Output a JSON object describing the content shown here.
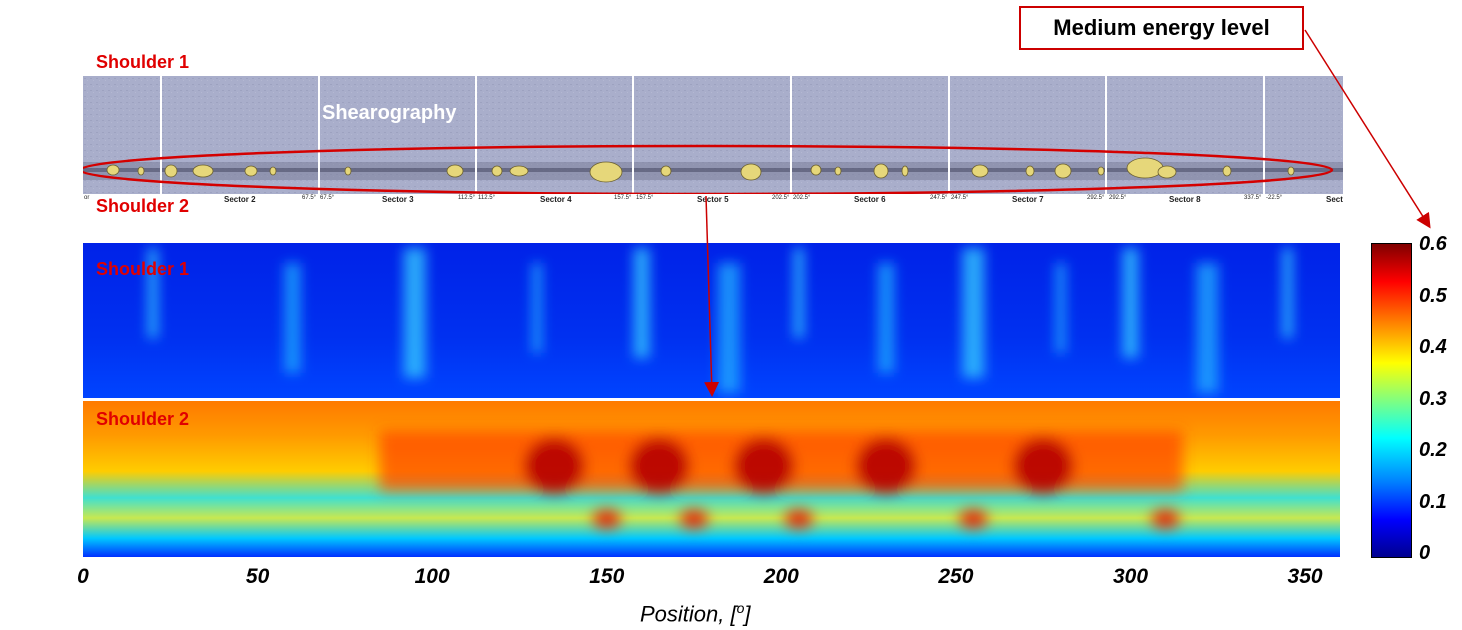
{
  "callout": {
    "text": "Medium energy level"
  },
  "shearography": {
    "title": "Shearography",
    "shoulder_top_label": "Shoulder 1",
    "shoulder_bottom_label": "Shoulder 2",
    "sectors": [
      "Sector 2",
      "Sector 3",
      "Sector 4",
      "Sector 5",
      "Sector 6",
      "Sector 7",
      "Sector 8",
      "Sect"
    ],
    "degree_marks": [
      "or",
      "67.5°",
      "67.5°",
      "112.5°",
      "112.5°",
      "157.5°",
      "157.5°",
      "202.5°",
      "202.5°",
      "247.5°",
      "247.5°",
      "292.5°",
      "292.5°",
      "337.5°",
      "-22.5°"
    ]
  },
  "heatmaps": {
    "shoulder1_label": "Shoulder 1",
    "shoulder2_label": "Shoulder 2"
  },
  "colors": {
    "label_red": "#e00000",
    "callout_border": "#cc0000",
    "shearo_bg": "#a7acc8",
    "defect_fill": "#e6d77a"
  },
  "chart_data": {
    "type": "heatmap",
    "title": "",
    "xlabel": "Position, [°]",
    "xlabel_main": "Position, [",
    "xlabel_sup": "o",
    "xlabel_end": "]",
    "xlim": [
      0,
      360
    ],
    "x_ticks": [
      0,
      50,
      100,
      150,
      200,
      250,
      300,
      350
    ],
    "x_tick_labels": [
      "0",
      "50",
      "100",
      "150",
      "200",
      "250",
      "300",
      "350"
    ],
    "colorbar": {
      "range": [
        0,
        0.6
      ],
      "ticks": [
        "0.6",
        "0.5",
        "0.4",
        "0.3",
        "0.2",
        "0.1",
        "0"
      ],
      "colormap": "jet"
    },
    "panels": [
      {
        "name": "Shoulder 1",
        "level": "low",
        "typical_value": 0.07,
        "max_value": 0.3
      },
      {
        "name": "Shoulder 2",
        "level": "medium",
        "typical_value": 0.4,
        "max_value": 0.6
      }
    ],
    "hotspot_positions": [
      135,
      150,
      165,
      175,
      195,
      205,
      230,
      255,
      275,
      310
    ]
  }
}
